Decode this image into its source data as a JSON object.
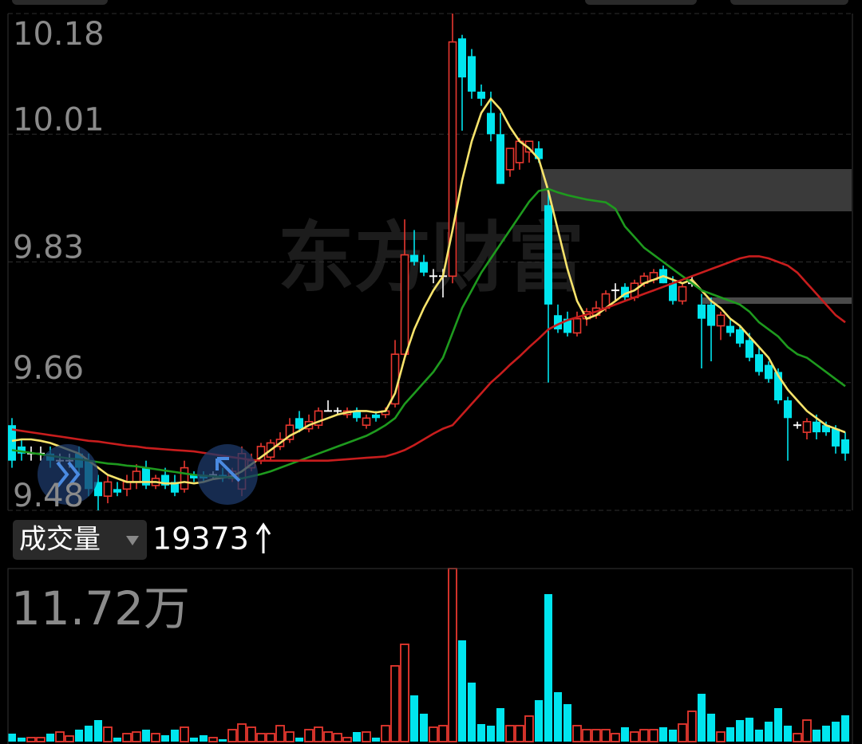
{
  "watermark": "东方财富",
  "volume_panel": {
    "indicator": "成交量",
    "readout": 19373
  },
  "chart_data": [
    {
      "type": "candlestick",
      "ylim": [
        9.48,
        10.18
      ],
      "yticks": [
        10.18,
        10.01,
        9.83,
        9.66,
        9.48
      ],
      "grid": true,
      "up_color": "#e8382f",
      "down_color": "#00e5ee",
      "flat_color": "#ffffff",
      "open": [
        9.6,
        9.57,
        9.56,
        9.56,
        9.56,
        9.55,
        9.55,
        9.56,
        9.55,
        9.52,
        9.5,
        9.51,
        9.51,
        9.52,
        9.54,
        9.515,
        9.53,
        9.52,
        9.51,
        9.53,
        9.53,
        9.53,
        9.53,
        9.525,
        9.51,
        9.54,
        9.55,
        9.555,
        9.57,
        9.58,
        9.61,
        9.595,
        9.6,
        9.62,
        9.62,
        9.615,
        9.62,
        9.6,
        9.615,
        9.615,
        9.63,
        9.7,
        9.84,
        9.83,
        9.81,
        9.81,
        9.81,
        10.145,
        10.12,
        10.07,
        10.04,
        10.01,
        9.96,
        9.97,
        9.985,
        9.99,
        9.91,
        9.755,
        9.75,
        9.73,
        9.75,
        9.755,
        9.765,
        9.79,
        9.795,
        9.78,
        9.8,
        9.805,
        9.82,
        9.8,
        9.775,
        9.8,
        9.77,
        9.77,
        9.74,
        9.74,
        9.735,
        9.72,
        9.7,
        9.685,
        9.675,
        9.635,
        9.6,
        9.59,
        9.605,
        9.6,
        9.595,
        9.58
      ],
      "high": [
        9.61,
        9.58,
        9.57,
        9.57,
        9.57,
        9.56,
        9.56,
        9.57,
        9.56,
        9.53,
        9.53,
        9.52,
        9.53,
        9.545,
        9.55,
        9.53,
        9.54,
        9.53,
        9.55,
        9.535,
        9.535,
        9.535,
        9.54,
        9.54,
        9.57,
        9.56,
        9.575,
        9.58,
        9.59,
        9.61,
        9.62,
        9.615,
        9.625,
        9.635,
        9.625,
        9.625,
        9.625,
        9.615,
        9.62,
        9.625,
        9.72,
        9.89,
        9.875,
        9.84,
        9.82,
        9.82,
        10.18,
        10.15,
        10.13,
        10.08,
        10.07,
        10.04,
        9.99,
        10.005,
        10.0,
        10.0,
        9.93,
        9.77,
        9.76,
        9.76,
        9.765,
        9.775,
        9.79,
        9.8,
        9.8,
        9.805,
        9.815,
        9.82,
        9.825,
        9.81,
        9.8,
        9.81,
        9.785,
        9.78,
        9.76,
        9.75,
        9.74,
        9.73,
        9.71,
        9.69,
        9.68,
        9.64,
        9.605,
        9.61,
        9.615,
        9.605,
        9.6,
        9.59
      ],
      "low": [
        9.54,
        9.55,
        9.55,
        9.55,
        9.54,
        9.54,
        9.54,
        9.53,
        9.5,
        9.48,
        9.49,
        9.5,
        9.5,
        9.51,
        9.51,
        9.51,
        9.51,
        9.5,
        9.505,
        9.52,
        9.52,
        9.525,
        9.52,
        9.52,
        9.5,
        9.535,
        9.545,
        9.55,
        9.565,
        9.575,
        9.59,
        9.59,
        9.595,
        9.62,
        9.615,
        9.61,
        9.605,
        9.595,
        9.605,
        9.61,
        9.625,
        9.695,
        9.825,
        9.81,
        9.8,
        9.78,
        9.8,
        10.015,
        10.06,
        10.05,
        10.0,
        9.94,
        9.95,
        9.96,
        9.97,
        9.97,
        9.66,
        9.73,
        9.725,
        9.725,
        9.74,
        9.75,
        9.76,
        9.775,
        9.775,
        9.775,
        9.795,
        9.8,
        9.8,
        9.77,
        9.77,
        9.795,
        9.68,
        9.69,
        9.72,
        9.725,
        9.71,
        9.69,
        9.67,
        9.66,
        9.63,
        9.55,
        9.595,
        9.58,
        9.58,
        9.585,
        9.56,
        9.55
      ],
      "close": [
        9.55,
        9.56,
        9.56,
        9.56,
        9.55,
        9.55,
        9.55,
        9.54,
        9.51,
        9.5,
        9.52,
        9.505,
        9.52,
        9.535,
        9.515,
        9.525,
        9.515,
        9.505,
        9.54,
        9.525,
        9.525,
        9.53,
        9.525,
        9.535,
        9.56,
        9.55,
        9.57,
        9.575,
        9.58,
        9.6,
        9.595,
        9.605,
        9.62,
        9.62,
        9.62,
        9.62,
        9.61,
        9.61,
        9.61,
        9.62,
        9.7,
        9.84,
        9.83,
        9.815,
        9.81,
        9.81,
        10.14,
        10.09,
        10.07,
        10.06,
        10.01,
        9.94,
        9.99,
        10.0,
        10.0,
        9.975,
        9.77,
        9.735,
        9.73,
        9.75,
        9.76,
        9.765,
        9.785,
        9.79,
        9.78,
        9.8,
        9.81,
        9.815,
        9.8,
        9.775,
        9.795,
        9.8,
        9.75,
        9.74,
        9.755,
        9.73,
        9.715,
        9.695,
        9.675,
        9.665,
        9.635,
        9.61,
        9.6,
        9.605,
        9.59,
        9.59,
        9.57,
        9.56
      ],
      "series": [
        {
          "color": "#f7e36b",
          "values": [
            9.578,
            9.58,
            9.58,
            9.578,
            9.575,
            9.57,
            9.565,
            9.56,
            9.55,
            9.54,
            9.53,
            9.525,
            9.52,
            9.52,
            9.52,
            9.52,
            9.518,
            9.518,
            9.52,
            9.518,
            9.52,
            9.524,
            9.526,
            9.528,
            9.535,
            9.545,
            9.555,
            9.565,
            9.575,
            9.585,
            9.592,
            9.6,
            9.605,
            9.61,
            9.615,
            9.618,
            9.62,
            9.62,
            9.618,
            9.62,
            9.645,
            9.695,
            9.735,
            9.765,
            9.79,
            9.81,
            9.875,
            9.945,
            10.0,
            10.04,
            10.06,
            10.045,
            10.02,
            10.0,
            9.99,
            9.975,
            9.93,
            9.875,
            9.82,
            9.775,
            9.75,
            9.755,
            9.765,
            9.775,
            9.785,
            9.79,
            9.8,
            9.805,
            9.81,
            9.805,
            9.8,
            9.805,
            9.79,
            9.775,
            9.765,
            9.75,
            9.74,
            9.725,
            9.71,
            9.695,
            9.67,
            9.65,
            9.635,
            9.62,
            9.61,
            9.6,
            9.595,
            9.59
          ]
        },
        {
          "color": "#1e9a1e",
          "values": [
            9.565,
            9.563,
            9.561,
            9.559,
            9.557,
            9.555,
            9.553,
            9.552,
            9.55,
            9.548,
            9.546,
            9.545,
            9.543,
            9.542,
            9.54,
            9.538,
            9.536,
            9.534,
            9.532,
            9.53,
            9.529,
            9.528,
            9.527,
            9.526,
            9.525,
            9.528,
            9.531,
            9.535,
            9.54,
            9.545,
            9.55,
            9.555,
            9.56,
            9.565,
            9.57,
            9.575,
            9.58,
            9.585,
            9.592,
            9.6,
            9.61,
            9.63,
            9.645,
            9.66,
            9.675,
            9.695,
            9.73,
            9.765,
            9.79,
            9.815,
            9.835,
            9.855,
            9.875,
            9.895,
            9.915,
            9.93,
            9.933,
            9.928,
            9.924,
            9.921,
            9.918,
            9.916,
            9.914,
            9.905,
            9.88,
            9.865,
            9.85,
            9.84,
            9.83,
            9.82,
            9.81,
            9.8,
            9.79,
            9.785,
            9.78,
            9.775,
            9.77,
            9.76,
            9.745,
            9.735,
            9.725,
            9.71,
            9.7,
            9.695,
            9.685,
            9.675,
            9.665,
            9.655
          ]
        },
        {
          "color": "#c81d1d",
          "values": [
            9.594,
            9.592,
            9.59,
            9.588,
            9.586,
            9.584,
            9.582,
            9.58,
            9.578,
            9.577,
            9.575,
            9.573,
            9.571,
            9.57,
            9.568,
            9.567,
            9.566,
            9.565,
            9.564,
            9.563,
            9.561,
            9.559,
            9.557,
            9.555,
            9.553,
            9.551,
            9.55,
            9.55,
            9.55,
            9.55,
            9.55,
            9.55,
            9.55,
            9.55,
            9.551,
            9.552,
            9.553,
            9.554,
            9.555,
            9.556,
            9.56,
            9.565,
            9.572,
            9.58,
            9.588,
            9.595,
            9.6,
            9.615,
            9.63,
            9.645,
            9.66,
            9.672,
            9.685,
            9.697,
            9.71,
            9.722,
            9.735,
            9.742,
            9.748,
            9.752,
            9.756,
            9.76,
            9.765,
            9.77,
            9.775,
            9.78,
            9.785,
            9.79,
            9.795,
            9.8,
            9.805,
            9.81,
            9.815,
            9.82,
            9.825,
            9.83,
            9.835,
            9.838,
            9.838,
            9.835,
            9.83,
            9.825,
            9.815,
            9.8,
            9.785,
            9.77,
            9.755,
            9.745
          ]
        }
      ]
    },
    {
      "type": "bar",
      "ylim": [
        0,
        117200
      ],
      "yticks": [
        {
          "value": 117200,
          "label": "11.72万"
        }
      ],
      "up_color": "#e8382f",
      "down_color": "#00e5ee",
      "values": [
        5400,
        2700,
        2700,
        2700,
        5400,
        6480,
        3780,
        8100,
        10800,
        14580,
        9720,
        2700,
        5400,
        6480,
        8100,
        5400,
        4320,
        8100,
        9720,
        2700,
        4320,
        2700,
        1620,
        8100,
        11880,
        9720,
        5400,
        5400,
        10800,
        6480,
        2700,
        8100,
        9720,
        6480,
        5400,
        2700,
        6480,
        6480,
        2700,
        10800,
        51300,
        65880,
        31320,
        18900,
        9720,
        10800,
        117200,
        68580,
        39960,
        11880,
        10800,
        22680,
        10800,
        10800,
        17280,
        28080,
        99900,
        33480,
        25380,
        10800,
        8100,
        8100,
        8100,
        5400,
        9720,
        6480,
        8100,
        8100,
        9720,
        8100,
        11880,
        20520,
        32400,
        18900,
        6480,
        9720,
        14580,
        16200,
        8100,
        13500,
        22680,
        10800,
        5400,
        14580,
        8100,
        10800,
        13500,
        17820
      ]
    }
  ]
}
